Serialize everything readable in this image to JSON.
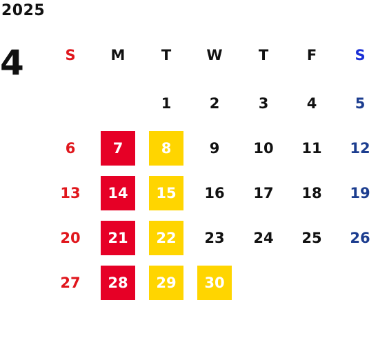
{
  "calendar": {
    "year": "2025",
    "month": "4",
    "weekdays": [
      "S",
      "M",
      "T",
      "W",
      "T",
      "F",
      "S"
    ],
    "colors": {
      "sunday": "#e0161c",
      "saturday_header": "#1a2fd6",
      "saturday": "#1c3d8f",
      "red_box": "#e60026",
      "yellow_box": "#ffd500"
    },
    "weeks": [
      [
        {
          "day": ""
        },
        {
          "day": ""
        },
        {
          "day": "1",
          "style": "plain"
        },
        {
          "day": "2",
          "style": "plain"
        },
        {
          "day": "3",
          "style": "plain"
        },
        {
          "day": "4",
          "style": "plain"
        },
        {
          "day": "5",
          "style": "saturday"
        }
      ],
      [
        {
          "day": "6",
          "style": "sunday"
        },
        {
          "day": "7",
          "style": "red-box"
        },
        {
          "day": "8",
          "style": "yellow-box"
        },
        {
          "day": "9",
          "style": "plain"
        },
        {
          "day": "10",
          "style": "plain"
        },
        {
          "day": "11",
          "style": "plain"
        },
        {
          "day": "12",
          "style": "saturday"
        }
      ],
      [
        {
          "day": "13",
          "style": "sunday"
        },
        {
          "day": "14",
          "style": "red-box"
        },
        {
          "day": "15",
          "style": "yellow-box"
        },
        {
          "day": "16",
          "style": "plain"
        },
        {
          "day": "17",
          "style": "plain"
        },
        {
          "day": "18",
          "style": "plain"
        },
        {
          "day": "19",
          "style": "saturday"
        }
      ],
      [
        {
          "day": "20",
          "style": "sunday"
        },
        {
          "day": "21",
          "style": "red-box"
        },
        {
          "day": "22",
          "style": "yellow-box"
        },
        {
          "day": "23",
          "style": "plain"
        },
        {
          "day": "24",
          "style": "plain"
        },
        {
          "day": "25",
          "style": "plain"
        },
        {
          "day": "26",
          "style": "saturday"
        }
      ],
      [
        {
          "day": "27",
          "style": "sunday"
        },
        {
          "day": "28",
          "style": "red-box"
        },
        {
          "day": "29",
          "style": "yellow-box"
        },
        {
          "day": "30",
          "style": "yellow-box"
        },
        {
          "day": ""
        },
        {
          "day": ""
        },
        {
          "day": ""
        }
      ]
    ]
  }
}
